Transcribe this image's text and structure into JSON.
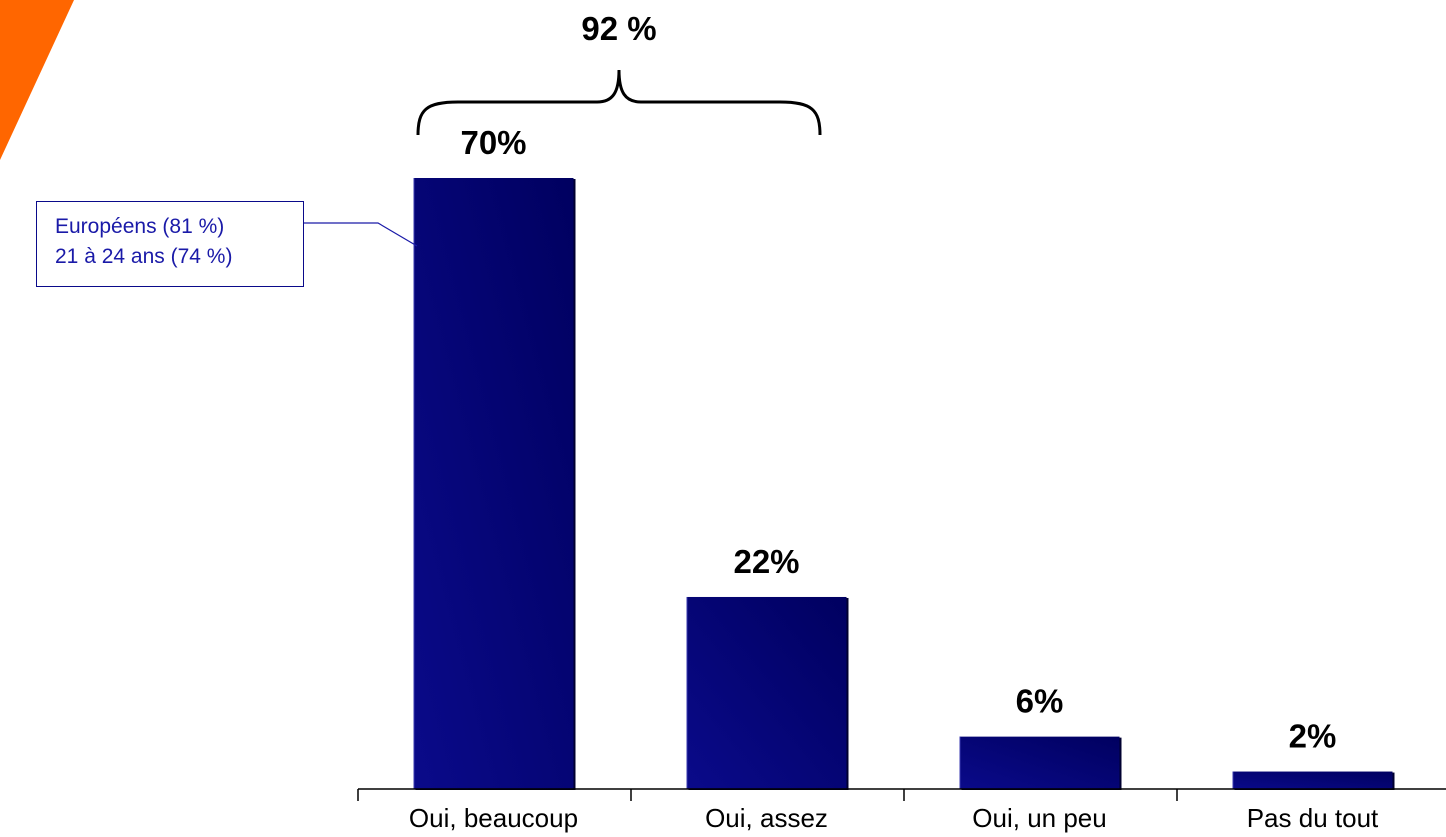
{
  "chart_data": {
    "type": "bar",
    "categories": [
      "Oui, beaucoup",
      "Oui, assez",
      "Oui, un peu",
      "Pas du tout"
    ],
    "values": [
      70,
      22,
      6,
      2
    ],
    "value_labels": [
      "70%",
      "22%",
      "6%",
      "2%"
    ],
    "ylim": [
      0,
      70
    ],
    "title": "",
    "xlabel": "",
    "ylabel": "",
    "grid": false,
    "bar_color": "#0a0a8a",
    "bar_color_dark": "#000060",
    "bracket": {
      "label": "92 %",
      "spans": [
        "Oui, beaucoup",
        "Oui, assez"
      ]
    },
    "callout": {
      "target": "Oui, beaucoup",
      "lines": [
        "Européens (81 %)",
        "21 à 24 ans (74 %)"
      ],
      "color": "#1a1aa8"
    }
  },
  "decoration": {
    "corner_accent_color": "#ff6600"
  }
}
